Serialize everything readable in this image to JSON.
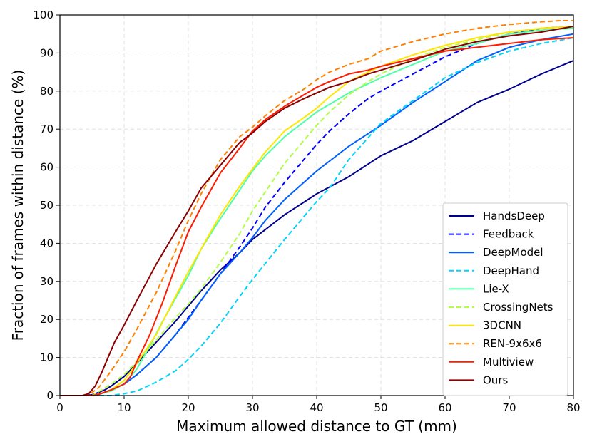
{
  "chart_data": {
    "type": "line",
    "title": "",
    "xlabel": "Maximum allowed distance to GT (mm)",
    "ylabel": "Fraction of frames within distance (%)",
    "xlim": [
      0,
      80
    ],
    "ylim": [
      0,
      100
    ],
    "xticks": [
      0,
      10,
      20,
      30,
      40,
      50,
      60,
      70,
      80
    ],
    "yticks": [
      0,
      10,
      20,
      30,
      40,
      50,
      60,
      70,
      80,
      90,
      100
    ],
    "grid": true,
    "legend_position": "bottom-right",
    "series": [
      {
        "name": "HandsDeep",
        "color": "#00008f",
        "dash": "solid",
        "x": [
          0,
          4,
          5,
          6,
          7,
          8,
          10,
          12,
          15,
          18,
          20,
          22,
          25,
          28,
          30,
          35,
          40,
          45,
          50,
          55,
          60,
          65,
          70,
          75,
          80
        ],
        "y": [
          0,
          0,
          0.2,
          0.8,
          1.5,
          2.5,
          5,
          8.5,
          14,
          19.5,
          23.5,
          27.5,
          33,
          37.5,
          41,
          47.5,
          53,
          57.5,
          63,
          67,
          72,
          77,
          80.5,
          84.5,
          88
        ]
      },
      {
        "name": "Feedback",
        "color": "#0000ff",
        "dash": "dashed",
        "x": [
          0,
          5,
          6,
          7,
          8,
          10,
          12,
          15,
          18,
          20,
          22,
          25,
          28,
          30,
          32,
          35,
          38,
          40,
          42,
          45,
          48,
          50,
          55,
          60,
          65,
          70,
          75,
          80
        ],
        "y": [
          0,
          0,
          0.3,
          0.8,
          1.5,
          3,
          5.5,
          10,
          16,
          20.5,
          25,
          32,
          39,
          44,
          49.5,
          56,
          62,
          66,
          69.5,
          74,
          78,
          80,
          84.5,
          89,
          92.5,
          95,
          96.5,
          97
        ]
      },
      {
        "name": "DeepModel",
        "color": "#0060ff",
        "dash": "solid",
        "x": [
          0,
          5,
          6,
          7,
          8,
          10,
          12,
          15,
          18,
          20,
          22,
          25,
          28,
          30,
          32,
          35,
          40,
          45,
          50,
          55,
          60,
          65,
          70,
          75,
          80
        ],
        "y": [
          0,
          0,
          0.3,
          0.8,
          1.5,
          3,
          5.5,
          10,
          16,
          20,
          25,
          32,
          37.5,
          41.5,
          46,
          51.5,
          59,
          65.5,
          71,
          77,
          82.5,
          88,
          91.5,
          93.5,
          95
        ]
      },
      {
        "name": "DeepHand",
        "color": "#00d4ff",
        "dash": "dashed",
        "x": [
          0,
          8,
          10,
          12,
          15,
          18,
          20,
          22,
          25,
          28,
          30,
          35,
          40,
          42,
          45,
          50,
          55,
          60,
          65,
          70,
          75,
          80
        ],
        "y": [
          0,
          0,
          0.5,
          1.2,
          3.5,
          6.5,
          9.5,
          13,
          19,
          26,
          30.5,
          41,
          51,
          54.5,
          62,
          71.5,
          77.5,
          83.5,
          87.5,
          90.5,
          92.5,
          94
        ]
      },
      {
        "name": "Lie-X",
        "color": "#4effa8",
        "dash": "solid",
        "x": [
          0,
          5,
          6,
          8,
          10,
          12,
          14,
          16,
          18,
          20,
          22,
          25,
          28,
          30,
          32,
          35,
          40,
          45,
          50,
          55,
          60,
          65,
          70,
          75,
          80
        ],
        "y": [
          0,
          0,
          0.3,
          1.2,
          3,
          7,
          13,
          19.5,
          25.5,
          31.5,
          38.5,
          46.5,
          54,
          59,
          63,
          68,
          74.5,
          79.5,
          83.5,
          87,
          90.5,
          92.5,
          95,
          96,
          96.5
        ]
      },
      {
        "name": "CrossingNets",
        "color": "#b0ff46",
        "dash": "dashed",
        "x": [
          0,
          5,
          6,
          8,
          10,
          12,
          15,
          18,
          20,
          22,
          25,
          28,
          30,
          32,
          35,
          38,
          40,
          42,
          45,
          48,
          50,
          55,
          60,
          65,
          70,
          75,
          80
        ],
        "y": [
          0,
          0,
          1,
          3,
          5.5,
          9,
          14.5,
          20.5,
          24,
          28,
          35,
          42.5,
          48.5,
          53.5,
          61,
          67,
          71,
          74.5,
          79,
          82.5,
          84.5,
          88.5,
          91.5,
          93.5,
          95.5,
          96.5,
          97
        ]
      },
      {
        "name": "3DCNN",
        "color": "#ffe600",
        "dash": "solid",
        "x": [
          0,
          5,
          6,
          8,
          10,
          12,
          15,
          18,
          20,
          22,
          25,
          28,
          30,
          32,
          35,
          38,
          40,
          42,
          45,
          48,
          50,
          55,
          60,
          65,
          70,
          75,
          80
        ],
        "y": [
          0,
          0,
          0.3,
          1.5,
          4,
          8.5,
          16,
          26,
          32.5,
          38.5,
          47.5,
          55,
          59.5,
          64,
          69.5,
          73,
          75.5,
          78.5,
          82.5,
          85,
          86.5,
          89.5,
          92,
          94,
          95.5,
          96.5,
          97
        ]
      },
      {
        "name": "REN-9x6x6",
        "color": "#ff8000",
        "dash": "dashed",
        "x": [
          0,
          4,
          5,
          6,
          8,
          10,
          12,
          15,
          18,
          20,
          22,
          25,
          28,
          30,
          32,
          35,
          38,
          40,
          42,
          45,
          48,
          50,
          55,
          60,
          65,
          70,
          75,
          78,
          80
        ],
        "y": [
          0,
          0,
          0.8,
          2,
          6.5,
          11.5,
          17.5,
          27,
          38,
          46,
          53,
          62,
          68,
          70.5,
          73.5,
          77.5,
          80.5,
          83,
          85,
          87,
          88.5,
          90.5,
          93,
          95,
          96.5,
          97.5,
          98.2,
          98.5,
          98.5
        ]
      },
      {
        "name": "Multiview",
        "color": "#ff1a00",
        "dash": "solid",
        "x": [
          0,
          5,
          6,
          8,
          10,
          11,
          12,
          14,
          16,
          18,
          20,
          22,
          25,
          28,
          30,
          32,
          35,
          38,
          40,
          42,
          45,
          48,
          50,
          55,
          60,
          65,
          70,
          75,
          80
        ],
        "y": [
          0,
          0,
          0.3,
          1.5,
          3,
          5,
          9,
          16,
          24.5,
          34,
          43,
          49.5,
          58.5,
          65,
          69.5,
          72.5,
          76,
          79,
          81,
          82.5,
          84.5,
          85.5,
          86.5,
          88.5,
          90.5,
          91.5,
          92.5,
          93.5,
          94
        ]
      },
      {
        "name": "Ours",
        "color": "#8b0000",
        "dash": "solid",
        "x": [
          0,
          3.5,
          4.5,
          5.5,
          6.5,
          7.5,
          8.5,
          10,
          12,
          15,
          18,
          20,
          22,
          25,
          28,
          30,
          32,
          35,
          38,
          40,
          42,
          45,
          48,
          50,
          55,
          60,
          65,
          70,
          75,
          80
        ],
        "y": [
          0,
          0,
          0.5,
          2.5,
          6,
          10,
          14,
          18.5,
          25,
          34.5,
          43,
          48.5,
          54.5,
          60.5,
          66.5,
          69,
          72,
          75.5,
          78,
          79.5,
          81,
          82.5,
          84.5,
          85.5,
          88,
          91,
          93,
          94.5,
          95.5,
          97
        ]
      }
    ]
  }
}
